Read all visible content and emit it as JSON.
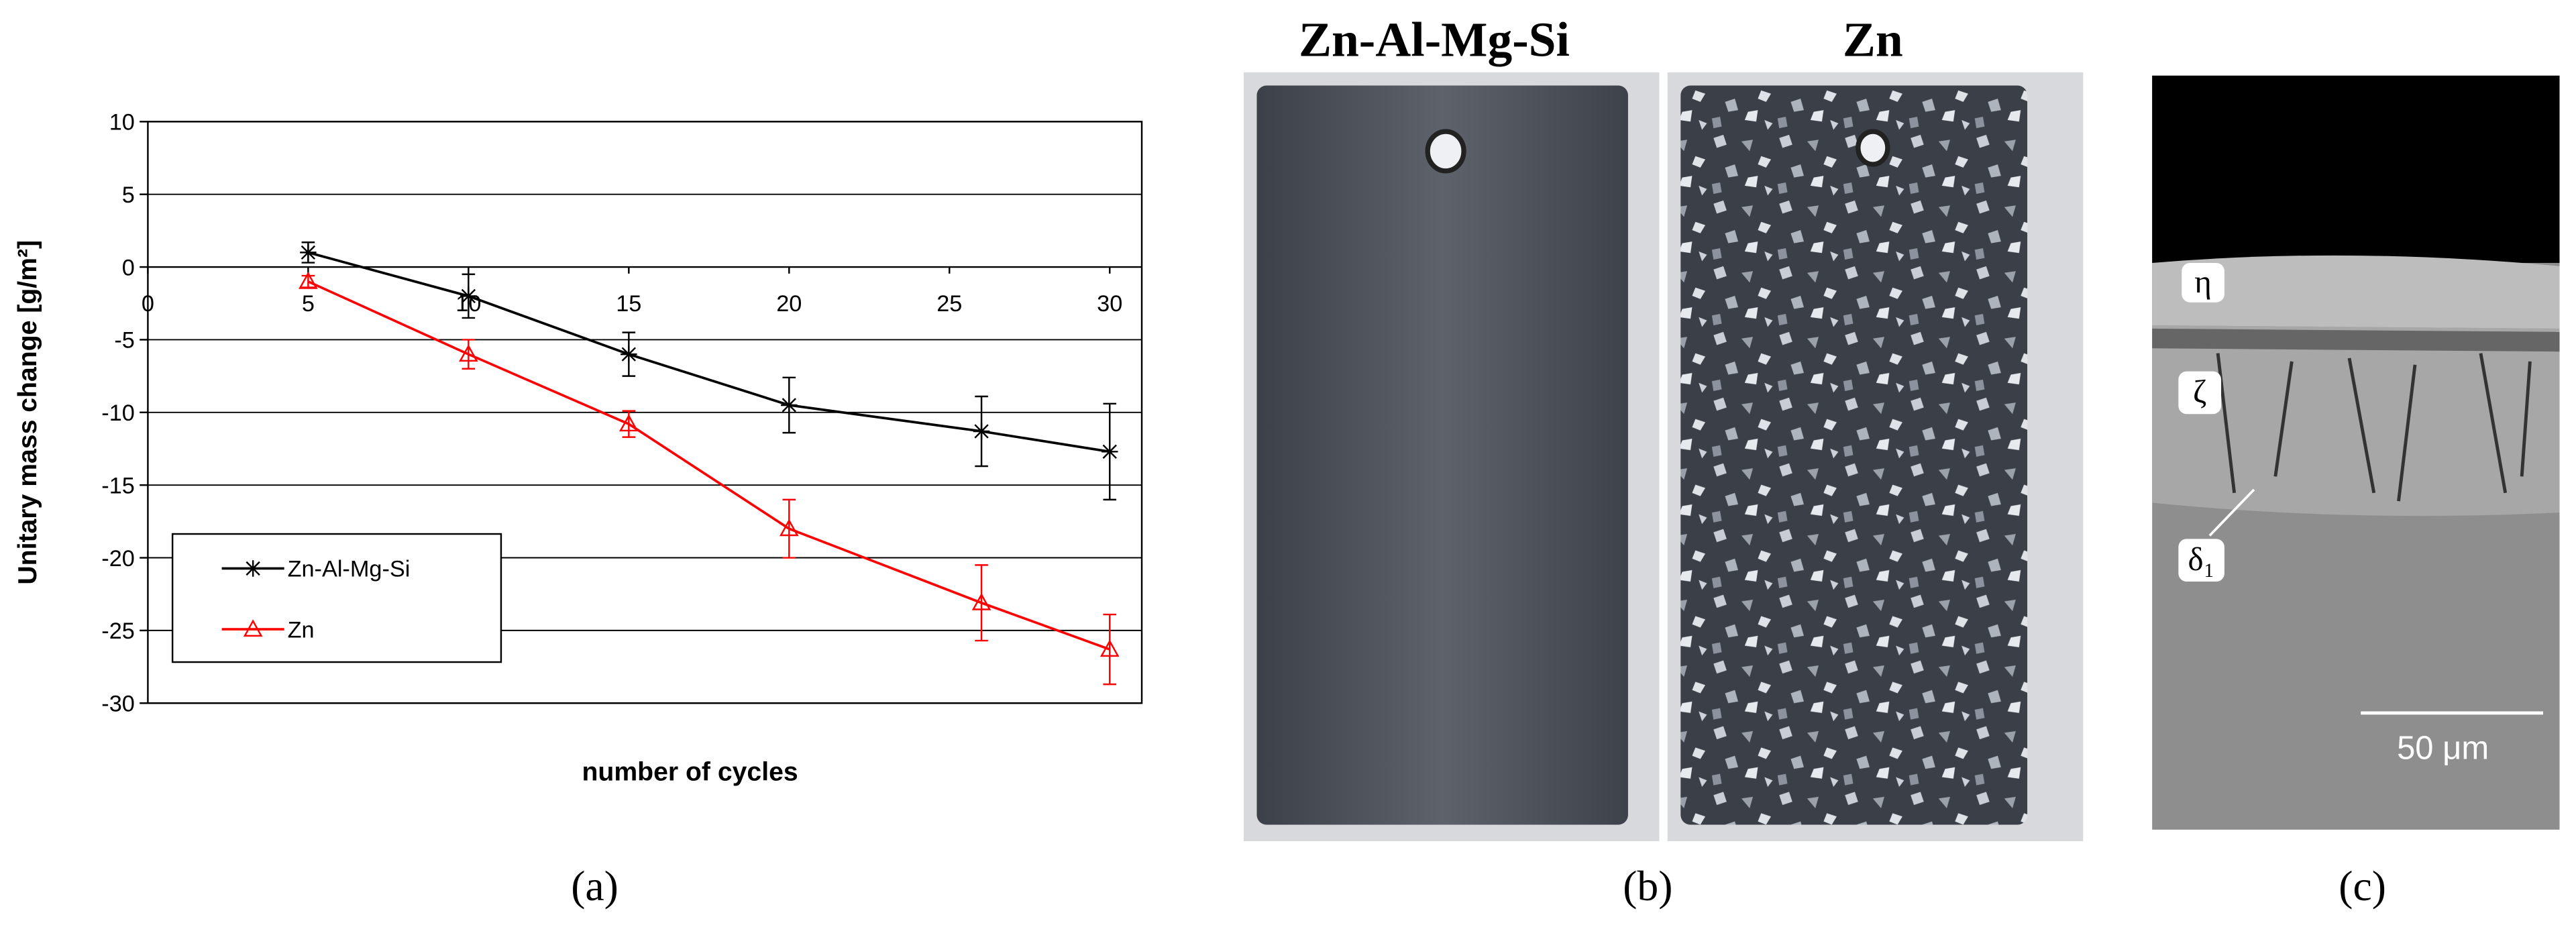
{
  "chart_data": {
    "type": "line",
    "x_label": "number of cycles",
    "y_label": "Unitary mass change [g/m²]",
    "x": [
      5,
      10,
      15,
      20,
      26,
      30
    ],
    "series": [
      {
        "name": "Zn-Al-Mg-Si",
        "color": "#000000",
        "marker": "star",
        "values": [
          1,
          -2,
          -6,
          -9.5,
          -11.3,
          -12.7
        ],
        "errors": [
          0.7,
          1.5,
          1.5,
          1.9,
          2.4,
          3.3
        ]
      },
      {
        "name": "Zn",
        "color": "#ff0000",
        "marker": "triangle",
        "values": [
          -1,
          -6,
          -10.8,
          -18,
          -23.1,
          -26.3
        ],
        "errors": [
          0.4,
          1.0,
          0.9,
          2.0,
          2.6,
          2.4
        ]
      }
    ],
    "xlim": [
      0,
      31
    ],
    "xticks": [
      0,
      5,
      10,
      15,
      20,
      25,
      30
    ],
    "ylim": [
      -30,
      10
    ],
    "yticks": [
      -30,
      -25,
      -20,
      -15,
      -10,
      -5,
      0,
      5,
      10
    ],
    "grid": true,
    "legend": "lower left"
  },
  "panels": {
    "a_label": "(a)",
    "b_label": "(b)",
    "c_label": "(c)",
    "b_left_title": "Zn-Al-Mg-Si",
    "b_right_title": "Zn",
    "c_eta": "η",
    "c_zeta": "ζ",
    "c_delta": "δ₁",
    "c_scale": "50 μm"
  }
}
